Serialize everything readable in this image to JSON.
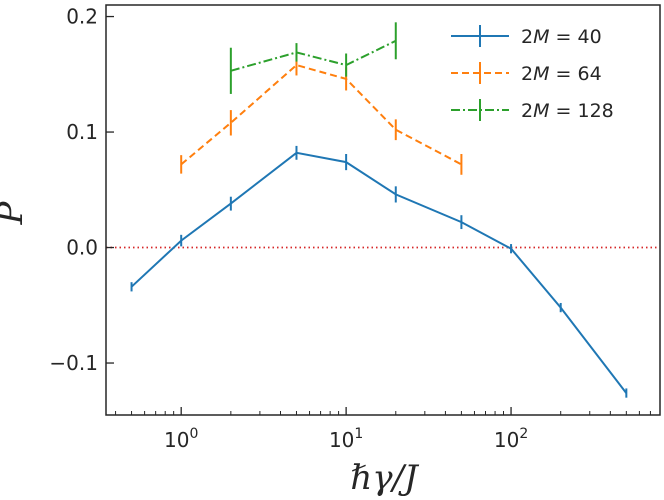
{
  "chart_data": {
    "type": "line",
    "title": "",
    "xlabel": "ℏγ/J",
    "ylabel": "P",
    "xscale": "log",
    "xlim": [
      0.35,
      800
    ],
    "ylim": [
      -0.145,
      0.21
    ],
    "xticks": [
      {
        "value": 1,
        "base": "10",
        "exp": "0"
      },
      {
        "value": 10,
        "base": "10",
        "exp": "1"
      },
      {
        "value": 100,
        "base": "10",
        "exp": "2"
      }
    ],
    "yticks": [
      {
        "value": -0.1,
        "label": "−0.1"
      },
      {
        "value": 0.0,
        "label": "0.0"
      },
      {
        "value": 0.1,
        "label": "0.1"
      },
      {
        "value": 0.2,
        "label": "0.2"
      }
    ],
    "reference_line": {
      "y": 0.0,
      "color": "#d62728",
      "style": "dotted"
    },
    "legend_position": "top-right",
    "series": [
      {
        "name": "2M = 40",
        "name_parts": {
          "coef": "2",
          "var": "M",
          "value": "40"
        },
        "color": "#1f77b4",
        "linestyle": "solid",
        "x": [
          0.5,
          1,
          2,
          5,
          10,
          20,
          50,
          100,
          200,
          500
        ],
        "y": [
          -0.034,
          0.006,
          0.038,
          0.082,
          0.074,
          0.046,
          0.022,
          -0.001,
          -0.052,
          -0.126
        ],
        "err": [
          0.004,
          0.005,
          0.006,
          0.006,
          0.007,
          0.007,
          0.006,
          0.004,
          0.004,
          0.004
        ]
      },
      {
        "name": "2M = 64",
        "name_parts": {
          "coef": "2",
          "var": "M",
          "value": "64"
        },
        "color": "#ff7f0e",
        "linestyle": "dashed",
        "x": [
          1,
          2,
          5,
          10,
          20,
          50
        ],
        "y": [
          0.072,
          0.108,
          0.158,
          0.146,
          0.102,
          0.072
        ],
        "err": [
          0.008,
          0.011,
          0.009,
          0.01,
          0.009,
          0.009
        ]
      },
      {
        "name": "2M = 128",
        "name_parts": {
          "coef": "2",
          "var": "M",
          "value": "128"
        },
        "color": "#2ca02c",
        "linestyle": "dash-dot",
        "x": [
          2,
          5,
          10,
          20
        ],
        "y": [
          0.153,
          0.169,
          0.158,
          0.179
        ],
        "err": [
          0.02,
          0.008,
          0.01,
          0.016
        ]
      }
    ]
  }
}
